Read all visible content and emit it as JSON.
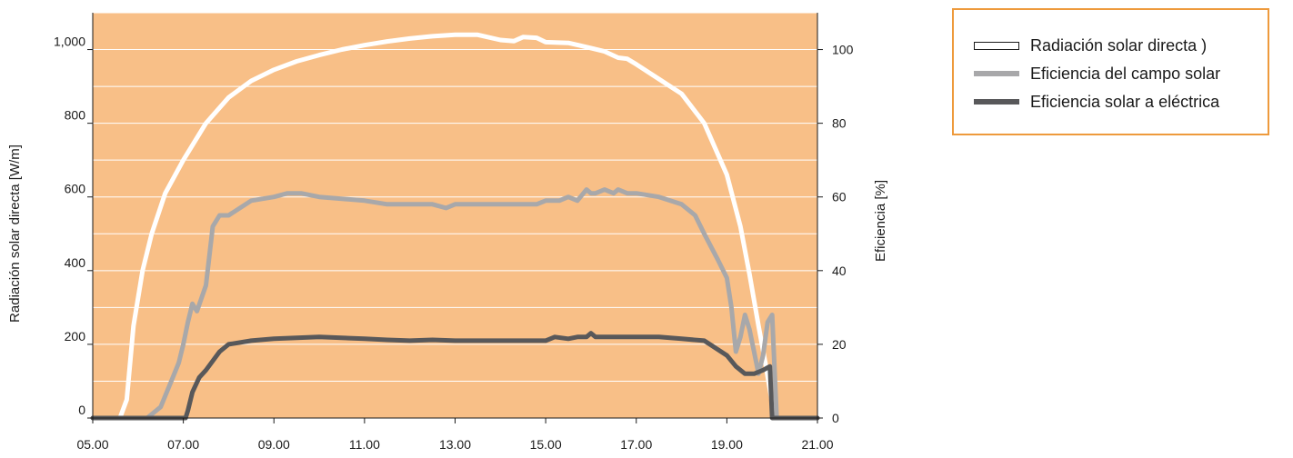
{
  "chart_data": {
    "type": "line",
    "xlabel": "",
    "ylabel_left": "Radiación solar directa [W/m]",
    "ylabel_right": "Eficiencia [%]",
    "xlim": [
      5,
      21
    ],
    "ylim_left": [
      0,
      1100
    ],
    "ylim_right": [
      0,
      110
    ],
    "x_ticks": [
      {
        "value": 5,
        "label": "05.00"
      },
      {
        "value": 7,
        "label": "07.00"
      },
      {
        "value": 9,
        "label": "09.00"
      },
      {
        "value": 11,
        "label": "11.00"
      },
      {
        "value": 13,
        "label": "13.00"
      },
      {
        "value": 15,
        "label": "15.00"
      },
      {
        "value": 17,
        "label": "17.00"
      },
      {
        "value": 19,
        "label": "19.00"
      },
      {
        "value": 21,
        "label": "21.00"
      }
    ],
    "y_ticks_left": [
      {
        "value": 0,
        "label": "0"
      },
      {
        "value": 200,
        "label": "200"
      },
      {
        "value": 400,
        "label": "400"
      },
      {
        "value": 600,
        "label": "600"
      },
      {
        "value": 800,
        "label": "800"
      },
      {
        "value": 1000,
        "label": "1,000"
      }
    ],
    "y_ticks_right": [
      {
        "value": 0,
        "label": "0"
      },
      {
        "value": 20,
        "label": "20"
      },
      {
        "value": 40,
        "label": "40"
      },
      {
        "value": 60,
        "label": "60"
      },
      {
        "value": 80,
        "label": "80"
      },
      {
        "value": 100,
        "label": "100"
      }
    ],
    "grid": true,
    "grid_step_left": 100,
    "legend_position": "right",
    "background_color": "#f8bf87",
    "series": [
      {
        "name": "Radiación solar directa )",
        "axis": "left",
        "color": "#ffffff",
        "x": [
          5.0,
          5.6,
          5.75,
          5.9,
          6.1,
          6.3,
          6.6,
          7.0,
          7.5,
          8.0,
          8.5,
          9.0,
          9.5,
          10.0,
          10.5,
          11.0,
          11.5,
          12.0,
          12.5,
          13.0,
          13.5,
          14.0,
          14.3,
          14.5,
          14.8,
          15.0,
          15.5,
          16.0,
          16.3,
          16.6,
          16.8,
          17.0,
          17.5,
          18.0,
          18.5,
          19.0,
          19.3,
          19.5,
          19.7,
          19.85,
          20.0,
          20.1,
          20.2,
          21.0
        ],
        "values": [
          0,
          0,
          50,
          250,
          400,
          500,
          610,
          700,
          800,
          870,
          915,
          945,
          968,
          985,
          1000,
          1012,
          1022,
          1030,
          1036,
          1040,
          1040,
          1026,
          1023,
          1034,
          1032,
          1020,
          1018,
          1004,
          995,
          978,
          975,
          960,
          920,
          880,
          800,
          660,
          520,
          390,
          250,
          150,
          40,
          0,
          0,
          0
        ]
      },
      {
        "name": "Eficiencia del campo solar",
        "axis": "right",
        "color": "#a8a8aa",
        "x": [
          5.0,
          6.2,
          6.5,
          6.6,
          6.8,
          6.9,
          7.0,
          7.1,
          7.2,
          7.3,
          7.5,
          7.65,
          7.8,
          8.0,
          8.5,
          9.0,
          9.3,
          9.6,
          10.0,
          11.0,
          11.5,
          12.0,
          12.5,
          12.8,
          13.0,
          13.3,
          13.5,
          14.0,
          14.5,
          14.8,
          15.0,
          15.3,
          15.5,
          15.7,
          15.9,
          16.0,
          16.1,
          16.3,
          16.5,
          16.6,
          16.8,
          17.0,
          17.5,
          18.0,
          18.3,
          18.5,
          18.8,
          19.0,
          19.1,
          19.2,
          19.3,
          19.4,
          19.5,
          19.6,
          19.7,
          19.8,
          19.9,
          20.0,
          20.05,
          20.1,
          21.0
        ],
        "values": [
          0,
          0,
          3,
          6,
          12,
          15,
          20,
          26,
          31,
          29,
          36,
          52,
          55,
          55,
          59,
          60,
          61,
          61,
          60,
          59,
          58,
          58,
          58,
          57,
          58,
          58,
          58,
          58,
          58,
          58,
          59,
          59,
          60,
          59,
          62,
          61,
          61,
          62,
          61,
          62,
          61,
          61,
          60,
          58,
          55,
          50,
          43,
          38,
          30,
          18,
          22,
          28,
          24,
          18,
          12,
          17,
          26,
          28,
          14,
          0,
          0
        ]
      },
      {
        "name": "Eficiencia solar a eléctrica",
        "axis": "right",
        "color": "#58585a",
        "x": [
          5.0,
          7.05,
          7.1,
          7.2,
          7.35,
          7.5,
          7.8,
          8.0,
          8.5,
          9.0,
          10.0,
          11.0,
          11.5,
          12.0,
          12.5,
          13.0,
          14.0,
          14.5,
          15.0,
          15.2,
          15.5,
          15.7,
          15.9,
          16.0,
          16.1,
          16.3,
          17.0,
          17.5,
          18.0,
          18.5,
          19.0,
          19.2,
          19.4,
          19.6,
          19.8,
          19.95,
          20.0,
          20.05,
          21.0
        ],
        "values": [
          0,
          0,
          2,
          7,
          11,
          13,
          18,
          20,
          21,
          21.5,
          22,
          21.5,
          21.2,
          21,
          21.2,
          21,
          21,
          21,
          21,
          22,
          21.5,
          22,
          22,
          23,
          22,
          22,
          22,
          22,
          21.5,
          21,
          17,
          14,
          12,
          12,
          13,
          14,
          0,
          0,
          0
        ]
      }
    ]
  }
}
